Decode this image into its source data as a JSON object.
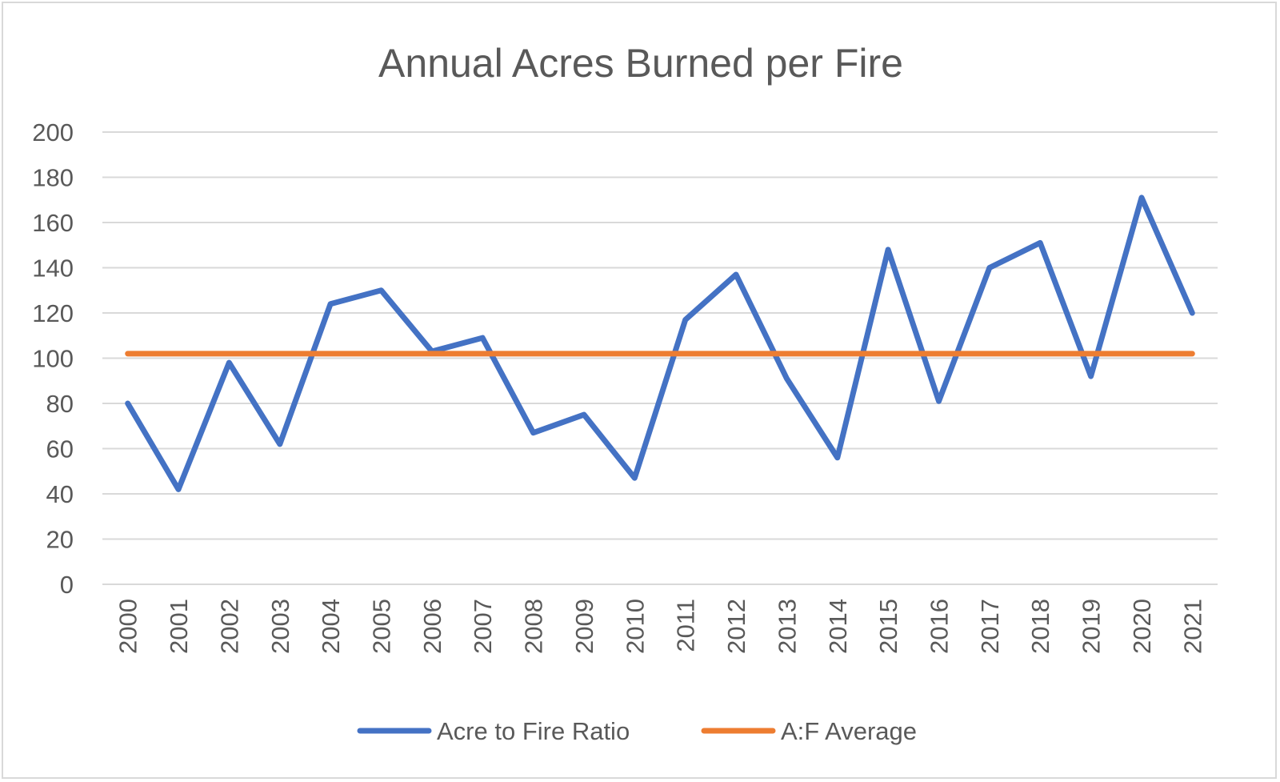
{
  "chart_data": {
    "type": "line",
    "title": "Annual Acres Burned per Fire",
    "xlabel": "",
    "ylabel": "",
    "ylim": [
      0,
      200
    ],
    "y_ticks": [
      0,
      20,
      40,
      60,
      80,
      100,
      120,
      140,
      160,
      180,
      200
    ],
    "categories": [
      "2000",
      "2001",
      "2002",
      "2003",
      "2004",
      "2005",
      "2006",
      "2007",
      "2008",
      "2009",
      "2010",
      "2011",
      "2012",
      "2013",
      "2014",
      "2015",
      "2016",
      "2017",
      "2018",
      "2019",
      "2020",
      "2021"
    ],
    "series": [
      {
        "name": "Acre to Fire Ratio",
        "color": "#4472c4",
        "values": [
          80,
          42,
          98,
          62,
          124,
          130,
          103,
          109,
          67,
          75,
          47,
          117,
          137,
          91,
          56,
          148,
          81,
          140,
          151,
          92,
          171,
          120
        ]
      },
      {
        "name": "A:F Average",
        "color": "#ed7d31",
        "values": [
          102,
          102,
          102,
          102,
          102,
          102,
          102,
          102,
          102,
          102,
          102,
          102,
          102,
          102,
          102,
          102,
          102,
          102,
          102,
          102,
          102,
          102
        ]
      }
    ],
    "grid": true,
    "legend_position": "bottom"
  },
  "colors": {
    "gridline": "#d9d9d9",
    "text": "#595959",
    "border": "#d9d9d9"
  }
}
